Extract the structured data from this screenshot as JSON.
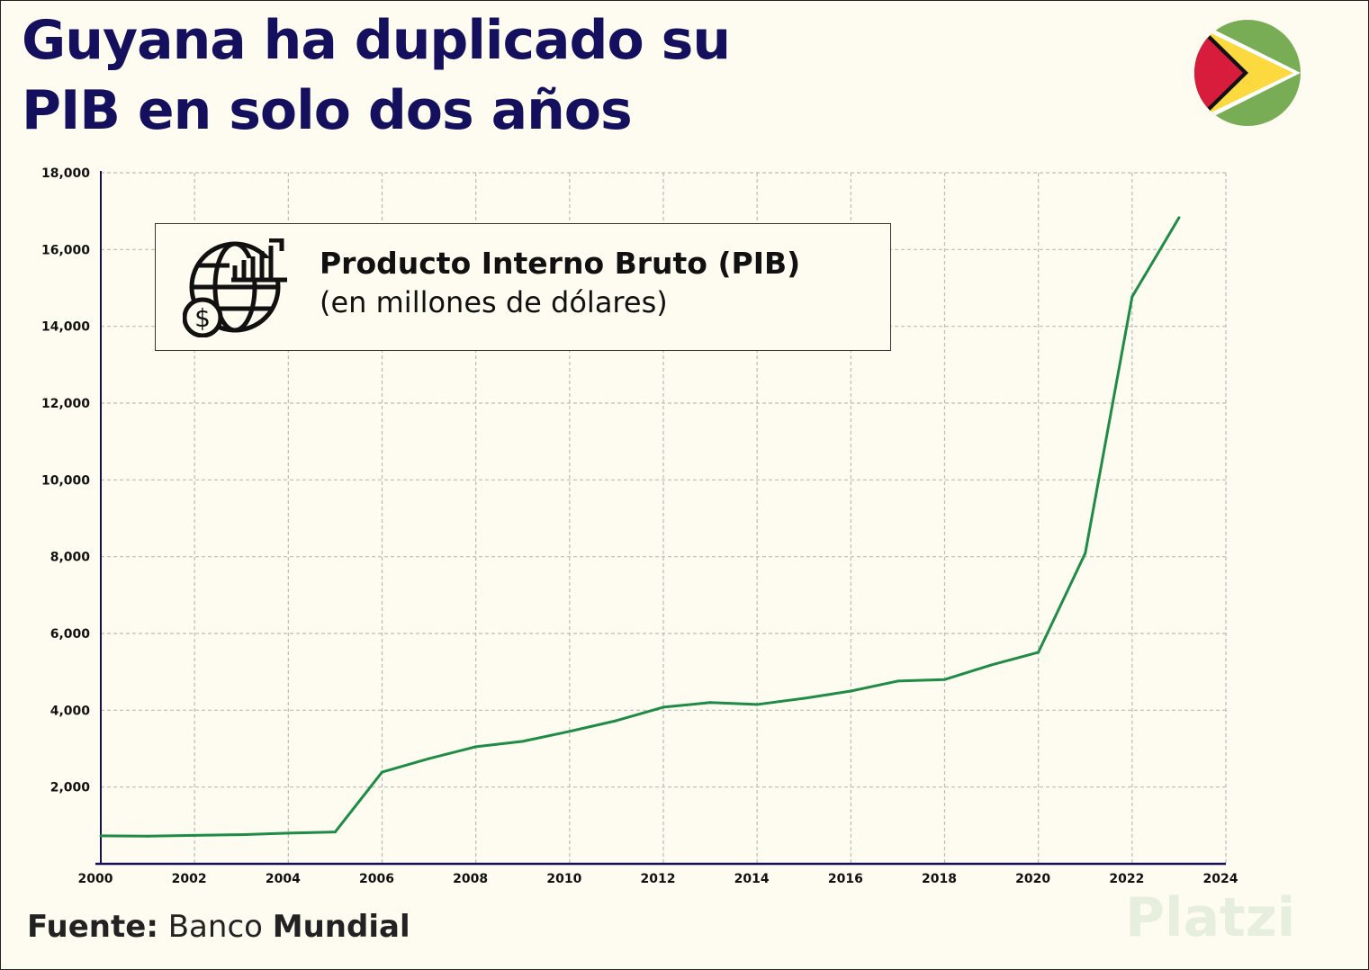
{
  "title_line1": "Guyana ha duplicado su",
  "title_line2": "PIB en solo dos años",
  "legend": {
    "title": "Producto Interno Bruto (PIB)",
    "subtitle": "(en millones de dólares)",
    "icon": "globe-dollar-growth-icon"
  },
  "source": {
    "label": "Fuente:",
    "name_part1": "Banco",
    "name_part2": "Mundial"
  },
  "watermark": "Platzi",
  "colors": {
    "line": "#1e8c45",
    "axis": "#14105e",
    "title": "#14105e",
    "background": "#fefcf0",
    "grid": "#bbbbbb"
  },
  "chart_data": {
    "type": "line",
    "title": "",
    "xlabel": "",
    "ylabel": "",
    "xlim": [
      2000,
      2024
    ],
    "ylim": [
      0,
      18000
    ],
    "grid": true,
    "x_ticks": [
      "2000",
      "2002",
      "2004",
      "2006",
      "2008",
      "2010",
      "2012",
      "2014",
      "2016",
      "2018",
      "2020",
      "2022",
      "2024"
    ],
    "y_ticks": [
      "2,000",
      "4,000",
      "6,000",
      "8,000",
      "10,000",
      "12,000",
      "14,000",
      "16,000",
      "18,000"
    ],
    "x": [
      2000,
      2001,
      2002,
      2003,
      2004,
      2005,
      2006,
      2007,
      2008,
      2009,
      2010,
      2011,
      2012,
      2013,
      2014,
      2015,
      2016,
      2017,
      2018,
      2019,
      2020,
      2021,
      2022,
      2023
    ],
    "values": [
      730,
      720,
      740,
      760,
      800,
      830,
      2390,
      2740,
      3050,
      3190,
      3450,
      3730,
      4080,
      4200,
      4150,
      4310,
      4500,
      4760,
      4800,
      5180,
      5510,
      8090,
      14770,
      16830
    ]
  }
}
